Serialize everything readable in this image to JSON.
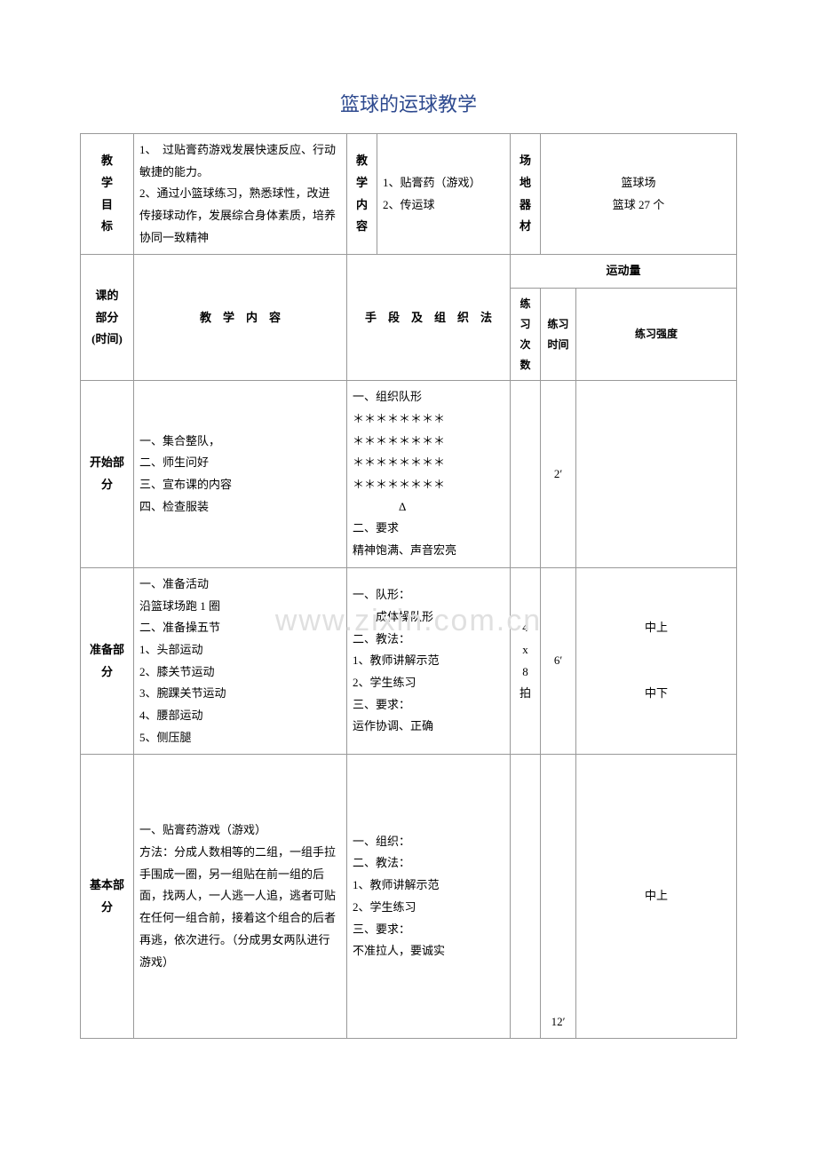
{
  "title": "篮球的运球教学",
  "watermark": "www.zixin.com.cn",
  "header": {
    "goal_label": "教学目标",
    "goal_text": "1、　过贴膏药游戏发展快速反应、行动敏捷的能力。\n2、通过小篮球练习，熟悉球性，改进传接球动作，发展综合身体素质，培养协同一致精神",
    "content_label": "教学内容",
    "content_text": "1、贴膏药（游戏）\n2、传运球",
    "equip_label": "场地器材",
    "equip_text": "篮球场\n篮球 27 个"
  },
  "cols": {
    "part": "课的\n部分\n(时间)",
    "content": "教　学　内　容",
    "method": "手　段　及　组　织　法",
    "load": "运动量",
    "reps": "练习次数",
    "time": "练习时间",
    "intensity": "练习强度"
  },
  "rows": {
    "start": {
      "label": "开始部分",
      "content": "一、集合整队，\n二、师生问好\n三、宣布课的内容\n四、检查服装",
      "method": "一、组织队形\n＊＊＊＊＊＊＊＊\n＊＊＊＊＊＊＊＊\n＊＊＊＊＊＊＊＊\n＊＊＊＊＊＊＊＊\n　　　　Δ\n二、要求\n精神饱满、声音宏亮",
      "reps": "",
      "time": "2′",
      "intensity": ""
    },
    "prep": {
      "label": "准备部分",
      "content": "一、准备活动\n沿篮球场跑 1 圈\n二、准备操五节\n1、头部运动\n2、膝关节运动\n3、腕踝关节运动\n4、腰部运动\n5、侧压腿",
      "method": "一、队形：\n　　成体操队形\n二、教法：\n1、教师讲解示范\n2、学生练习\n三、要求：\n运作协调、正确",
      "reps": "4\nx\n8\n拍",
      "time": "6′",
      "intensity": "中上\n\n\n中下"
    },
    "main": {
      "label": "基本部分",
      "content": "一、贴膏药游戏（游戏）\n方法：分成人数相等的二组，一组手拉手围成一圈，另一组贴在前一组的后面，找两人，一人逃一人追，逃者可贴在任何一组合前，接着这个组合的后者再逃，依次进行。（分成男女两队进行游戏）",
      "method": "一、组织：\n二、教法：\n1、教师讲解示范\n2、学生练习\n三、要求：\n不准拉人，要诚实",
      "reps": "",
      "time": "12′",
      "intensity": "中上"
    }
  }
}
